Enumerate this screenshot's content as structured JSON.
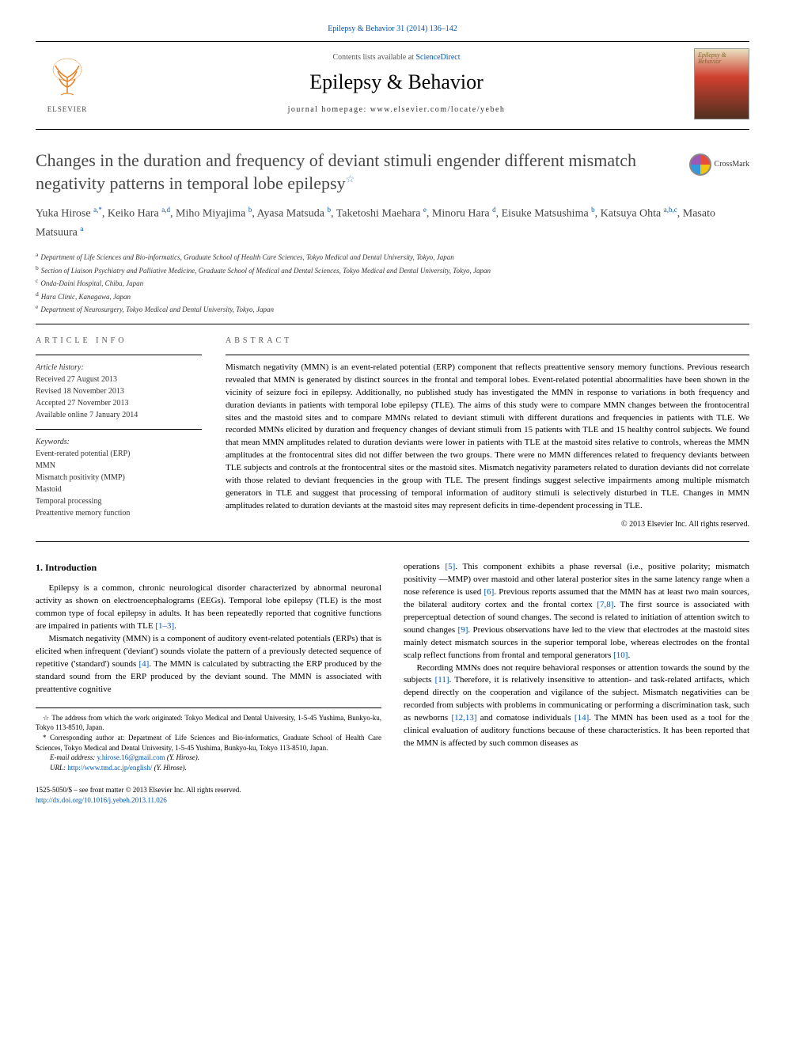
{
  "top_citation": "Epilepsy & Behavior 31 (2014) 136–142",
  "header": {
    "contents_prefix": "Contents lists available at ",
    "contents_link": "ScienceDirect",
    "journal_name": "Epilepsy & Behavior",
    "homepage_prefix": "journal homepage: ",
    "homepage_url": "www.elsevier.com/locate/yebeh",
    "publisher_label": "ELSEVIER",
    "cover_label": "Epilepsy & Behavior"
  },
  "article": {
    "title": "Changes in the duration and frequency of deviant stimuli engender different mismatch negativity patterns in temporal lobe epilepsy",
    "crossmark_label": "CrossMark"
  },
  "authors_line": "Yuka Hirose a,*, Keiko Hara a,d, Miho Miyajima b, Ayasa Matsuda b, Taketoshi Maehara e, Minoru Hara d, Eisuke Matsushima b, Katsuya Ohta a,b,c, Masato Matsuura a",
  "authors": [
    {
      "name": "Yuka Hirose ",
      "sup": "a,*"
    },
    {
      "name": ", Keiko Hara ",
      "sup": "a,d"
    },
    {
      "name": ", Miho Miyajima ",
      "sup": "b"
    },
    {
      "name": ", Ayasa Matsuda ",
      "sup": "b"
    },
    {
      "name": ", Taketoshi Maehara ",
      "sup": "e"
    },
    {
      "name": ", Minoru Hara ",
      "sup": "d"
    },
    {
      "name": ", Eisuke Matsushima ",
      "sup": "b"
    },
    {
      "name": ", Katsuya Ohta ",
      "sup": "a,b,c"
    },
    {
      "name": ", Masato Matsuura ",
      "sup": "a"
    }
  ],
  "affiliations": [
    {
      "sup": "a",
      "text": "Department of Life Sciences and Bio-informatics, Graduate School of Health Care Sciences, Tokyo Medical and Dental University, Tokyo, Japan"
    },
    {
      "sup": "b",
      "text": "Section of Liaison Psychiatry and Palliative Medicine, Graduate School of Medical and Dental Sciences, Tokyo Medical and Dental University, Tokyo, Japan"
    },
    {
      "sup": "c",
      "text": "Onda-Daini Hospital, Chiba, Japan"
    },
    {
      "sup": "d",
      "text": "Hara Clinic, Kanagawa, Japan"
    },
    {
      "sup": "e",
      "text": "Department of Neurosurgery, Tokyo Medical and Dental University, Tokyo, Japan"
    }
  ],
  "article_info": {
    "heading": "article info",
    "history_label": "Article history:",
    "received": "Received 27 August 2013",
    "revised": "Revised 18 November 2013",
    "accepted": "Accepted 27 November 2013",
    "online": "Available online 7 January 2014",
    "keywords_label": "Keywords:",
    "keywords": [
      "Event-rerated potential (ERP)",
      "MMN",
      "Mismatch positivity (MMP)",
      "Mastoid",
      "Temporal processing",
      "Preattentive memory function"
    ]
  },
  "abstract": {
    "heading": "abstract",
    "text": "Mismatch negativity (MMN) is an event-related potential (ERP) component that reflects preattentive sensory memory functions. Previous research revealed that MMN is generated by distinct sources in the frontal and temporal lobes. Event-related potential abnormalities have been shown in the vicinity of seizure foci in epilepsy. Additionally, no published study has investigated the MMN in response to variations in both frequency and duration deviants in patients with temporal lobe epilepsy (TLE). The aims of this study were to compare MMN changes between the frontocentral sites and the mastoid sites and to compare MMNs related to deviant stimuli with different durations and frequencies in patients with TLE. We recorded MMNs elicited by duration and frequency changes of deviant stimuli from 15 patients with TLE and 15 healthy control subjects. We found that mean MMN amplitudes related to duration deviants were lower in patients with TLE at the mastoid sites relative to controls, whereas the MMN amplitudes at the frontocentral sites did not differ between the two groups. There were no MMN differences related to frequency deviants between TLE subjects and controls at the frontocentral sites or the mastoid sites. Mismatch negativity parameters related to duration deviants did not correlate with those related to deviant frequencies in the group with TLE. The present findings suggest selective impairments among multiple mismatch generators in TLE and suggest that processing of temporal information of auditory stimuli is selectively disturbed in TLE. Changes in MMN amplitudes related to duration deviants at the mastoid sites may represent deficits in time-dependent processing in TLE.",
    "copyright": "© 2013 Elsevier Inc. All rights reserved."
  },
  "body": {
    "intro_heading": "1. Introduction",
    "col1_p1": "Epilepsy is a common, chronic neurological disorder characterized by abnormal neuronal activity as shown on electroencephalograms (EEGs). Temporal lobe epilepsy (TLE) is the most common type of focal epilepsy in adults. It has been repeatedly reported that cognitive functions are impaired in patients with TLE ",
    "col1_p1_ref": "[1–3]",
    "col1_p1_end": ".",
    "col1_p2": "Mismatch negativity (MMN) is a component of auditory event-related potentials (ERPs) that is elicited when infrequent ('deviant') sounds violate the pattern of a previously detected sequence of repetitive ('standard') sounds ",
    "col1_p2_ref": "[4]",
    "col1_p2_cont": ". The MMN is calculated by subtracting the ERP produced by the standard sound from the ERP produced by the deviant sound. The MMN is associated with preattentive cognitive",
    "col2_p1_a": "operations ",
    "col2_ref5": "[5]",
    "col2_p1_b": ". This component exhibits a phase reversal (i.e., positive polarity; mismatch positivity —MMP) over mastoid and other lateral posterior sites in the same latency range when a nose reference is used ",
    "col2_ref6": "[6]",
    "col2_p1_c": ". Previous reports assumed that the MMN has at least two main sources, the bilateral auditory cortex and the frontal cortex ",
    "col2_ref78": "[7,8]",
    "col2_p1_d": ". The first source is associated with preperceptual detection of sound changes. The second is related to initiation of attention switch to sound changes ",
    "col2_ref9": "[9]",
    "col2_p1_e": ". Previous observations have led to the view that electrodes at the mastoid sites mainly detect mismatch sources in the superior temporal lobe, whereas electrodes on the frontal scalp reflect functions from frontal and temporal generators ",
    "col2_ref10": "[10]",
    "col2_p1_f": ".",
    "col2_p2_a": "Recording MMNs does not require behavioral responses or attention towards the sound by the subjects ",
    "col2_ref11": "[11]",
    "col2_p2_b": ". Therefore, it is relatively insensitive to attention- and task-related artifacts, which depend directly on the cooperation and vigilance of the subject. Mismatch negativities can be recorded from subjects with problems in communicating or performing a discrimination task, such as newborns ",
    "col2_ref1213": "[12,13]",
    "col2_p2_c": " and comatose individuals ",
    "col2_ref14": "[14]",
    "col2_p2_d": ". The MMN has been used as a tool for the clinical evaluation of auditory functions because of these characteristics. It has been reported that the MMN is affected by such common diseases as"
  },
  "footnotes": {
    "star": "☆ The address from which the work originated: Tokyo Medical and Dental University, 1-5-45 Yushima, Bunkyo-ku, Tokyo 113-8510, Japan.",
    "corr": "* Corresponding author at: Department of Life Sciences and Bio-informatics, Graduate School of Health Care Sciences, Tokyo Medical and Dental University, 1-5-45 Yushima, Bunkyo-ku, Tokyo 113-8510, Japan.",
    "email_label": "E-mail address: ",
    "email": "y.hirose.16@gmail.com",
    "email_owner": " (Y. Hirose).",
    "url_label": "URL: ",
    "url": "http://www.tmd.ac.jp/english/",
    "url_owner": " (Y. Hirose)."
  },
  "footer": {
    "issn_line": "1525-5050/$ – see front matter © 2013 Elsevier Inc. All rights reserved.",
    "doi_url": "http://dx.doi.org/10.1016/j.yebeh.2013.11.026"
  }
}
